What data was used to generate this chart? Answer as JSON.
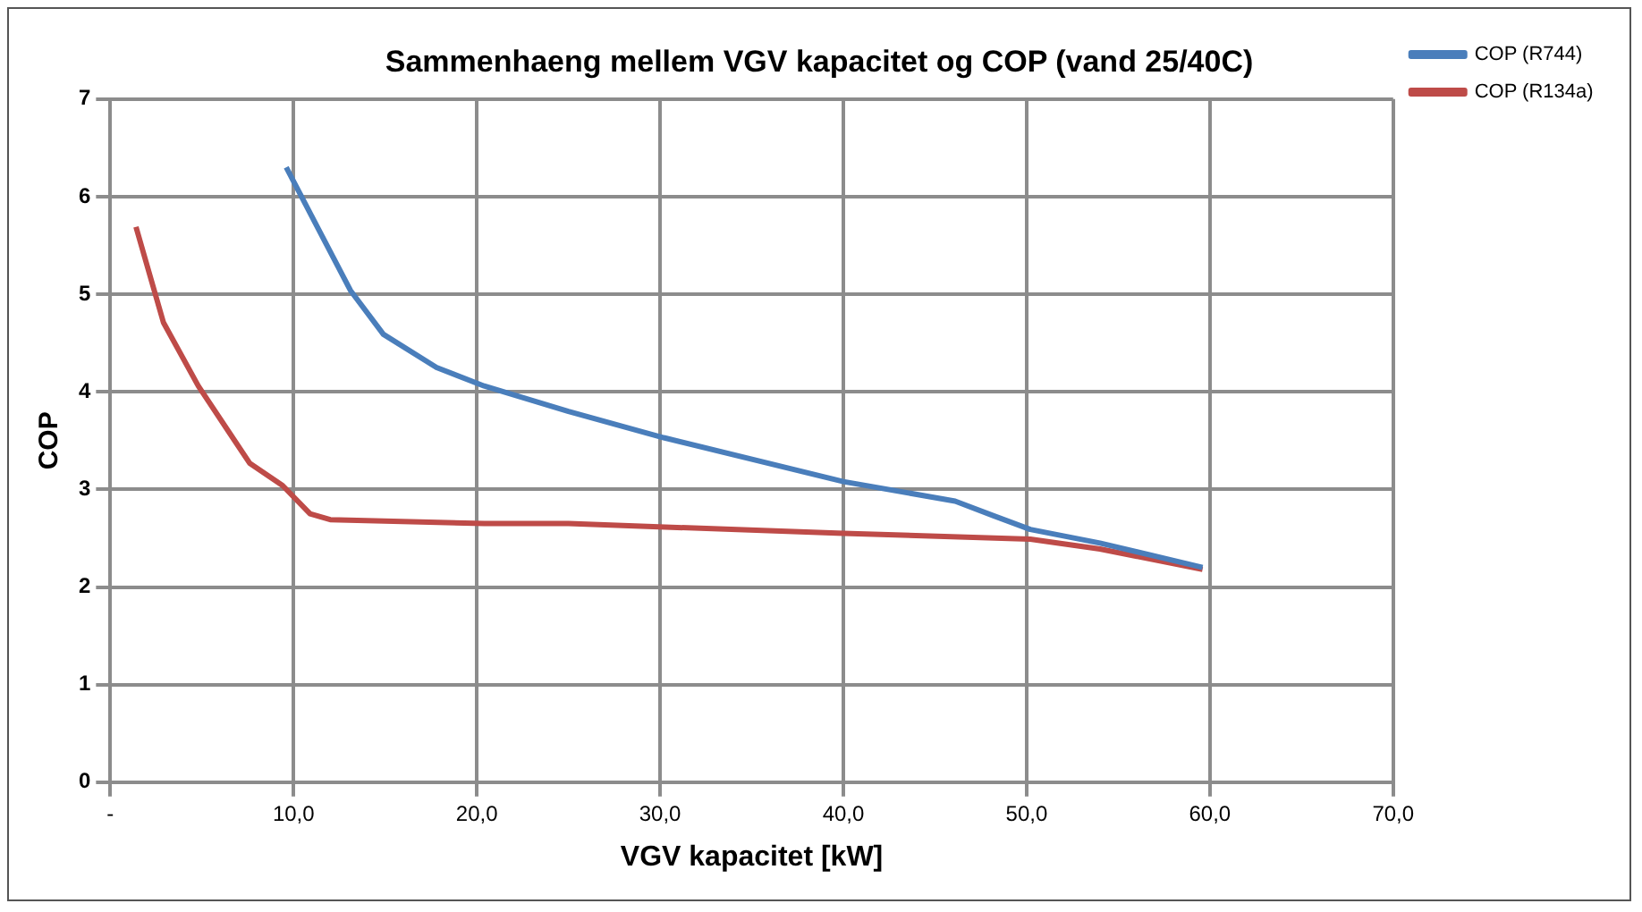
{
  "chart_data": {
    "type": "line",
    "title": "Sammenhaeng mellem VGV kapacitet og COP (vand 25/40C)",
    "xlabel": "VGV kapacitet [kW]",
    "ylabel": "COP",
    "series": [
      {
        "name": "COP (R744)",
        "color": "#4a7ebb",
        "x": [
          9.6,
          13.1,
          14.9,
          17.8,
          20.4,
          25.0,
          30.2,
          40.0,
          46.1,
          48.2,
          50.2,
          54.0,
          59.6
        ],
        "values": [
          6.3,
          5.04,
          4.59,
          4.25,
          4.06,
          3.8,
          3.53,
          3.08,
          2.88,
          2.73,
          2.59,
          2.45,
          2.2
        ]
      },
      {
        "name": "COP (R134a)",
        "color": "#be4b48",
        "x": [
          1.4,
          2.9,
          4.8,
          7.6,
          9.4,
          10.9,
          12.0,
          20.4,
          25.0,
          40.0,
          50.2,
          54.0,
          59.6
        ],
        "values": [
          5.69,
          4.71,
          4.06,
          3.27,
          3.04,
          2.75,
          2.69,
          2.65,
          2.65,
          2.55,
          2.49,
          2.39,
          2.18
        ]
      }
    ],
    "xlim": [
      0,
      70
    ],
    "xticks": [
      {
        "value": 0,
        "label": "-"
      },
      {
        "value": 10,
        "label": "10,0"
      },
      {
        "value": 20,
        "label": "20,0"
      },
      {
        "value": 30,
        "label": "30,0"
      },
      {
        "value": 40,
        "label": "40,0"
      },
      {
        "value": 50,
        "label": "50,0"
      },
      {
        "value": 60,
        "label": "60,0"
      },
      {
        "value": 70,
        "label": "70,0"
      }
    ],
    "ylim": [
      0,
      7
    ],
    "yticks": [
      0,
      1,
      2,
      3,
      4,
      5,
      6,
      7
    ],
    "grid": true,
    "legend": "top right",
    "marker": "none",
    "line_style": "solid"
  }
}
